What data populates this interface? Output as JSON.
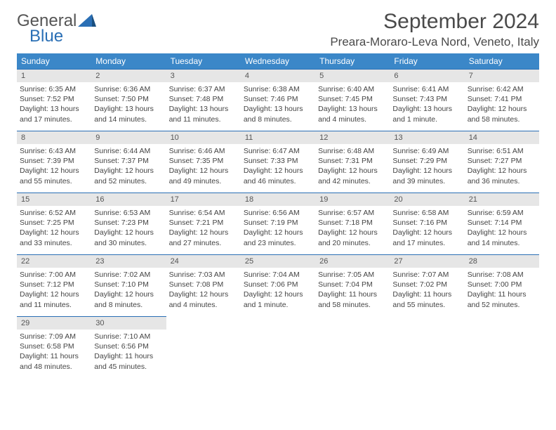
{
  "logo": {
    "line1": "General",
    "line2": "Blue"
  },
  "header": {
    "month_title": "September 2024",
    "location": "Preara-Moraro-Leva Nord, Veneto, Italy"
  },
  "colors": {
    "header_bg": "#3b87c8",
    "header_fg": "#ffffff",
    "day_bar_bg": "#e6e6e6",
    "day_bar_border": "#2a6fb5",
    "text": "#444444"
  },
  "weekdays": [
    "Sunday",
    "Monday",
    "Tuesday",
    "Wednesday",
    "Thursday",
    "Friday",
    "Saturday"
  ],
  "weeks": [
    [
      {
        "n": "1",
        "sunrise": "Sunrise: 6:35 AM",
        "sunset": "Sunset: 7:52 PM",
        "day1": "Daylight: 13 hours",
        "day2": "and 17 minutes."
      },
      {
        "n": "2",
        "sunrise": "Sunrise: 6:36 AM",
        "sunset": "Sunset: 7:50 PM",
        "day1": "Daylight: 13 hours",
        "day2": "and 14 minutes."
      },
      {
        "n": "3",
        "sunrise": "Sunrise: 6:37 AM",
        "sunset": "Sunset: 7:48 PM",
        "day1": "Daylight: 13 hours",
        "day2": "and 11 minutes."
      },
      {
        "n": "4",
        "sunrise": "Sunrise: 6:38 AM",
        "sunset": "Sunset: 7:46 PM",
        "day1": "Daylight: 13 hours",
        "day2": "and 8 minutes."
      },
      {
        "n": "5",
        "sunrise": "Sunrise: 6:40 AM",
        "sunset": "Sunset: 7:45 PM",
        "day1": "Daylight: 13 hours",
        "day2": "and 4 minutes."
      },
      {
        "n": "6",
        "sunrise": "Sunrise: 6:41 AM",
        "sunset": "Sunset: 7:43 PM",
        "day1": "Daylight: 13 hours",
        "day2": "and 1 minute."
      },
      {
        "n": "7",
        "sunrise": "Sunrise: 6:42 AM",
        "sunset": "Sunset: 7:41 PM",
        "day1": "Daylight: 12 hours",
        "day2": "and 58 minutes."
      }
    ],
    [
      {
        "n": "8",
        "sunrise": "Sunrise: 6:43 AM",
        "sunset": "Sunset: 7:39 PM",
        "day1": "Daylight: 12 hours",
        "day2": "and 55 minutes."
      },
      {
        "n": "9",
        "sunrise": "Sunrise: 6:44 AM",
        "sunset": "Sunset: 7:37 PM",
        "day1": "Daylight: 12 hours",
        "day2": "and 52 minutes."
      },
      {
        "n": "10",
        "sunrise": "Sunrise: 6:46 AM",
        "sunset": "Sunset: 7:35 PM",
        "day1": "Daylight: 12 hours",
        "day2": "and 49 minutes."
      },
      {
        "n": "11",
        "sunrise": "Sunrise: 6:47 AM",
        "sunset": "Sunset: 7:33 PM",
        "day1": "Daylight: 12 hours",
        "day2": "and 46 minutes."
      },
      {
        "n": "12",
        "sunrise": "Sunrise: 6:48 AM",
        "sunset": "Sunset: 7:31 PM",
        "day1": "Daylight: 12 hours",
        "day2": "and 42 minutes."
      },
      {
        "n": "13",
        "sunrise": "Sunrise: 6:49 AM",
        "sunset": "Sunset: 7:29 PM",
        "day1": "Daylight: 12 hours",
        "day2": "and 39 minutes."
      },
      {
        "n": "14",
        "sunrise": "Sunrise: 6:51 AM",
        "sunset": "Sunset: 7:27 PM",
        "day1": "Daylight: 12 hours",
        "day2": "and 36 minutes."
      }
    ],
    [
      {
        "n": "15",
        "sunrise": "Sunrise: 6:52 AM",
        "sunset": "Sunset: 7:25 PM",
        "day1": "Daylight: 12 hours",
        "day2": "and 33 minutes."
      },
      {
        "n": "16",
        "sunrise": "Sunrise: 6:53 AM",
        "sunset": "Sunset: 7:23 PM",
        "day1": "Daylight: 12 hours",
        "day2": "and 30 minutes."
      },
      {
        "n": "17",
        "sunrise": "Sunrise: 6:54 AM",
        "sunset": "Sunset: 7:21 PM",
        "day1": "Daylight: 12 hours",
        "day2": "and 27 minutes."
      },
      {
        "n": "18",
        "sunrise": "Sunrise: 6:56 AM",
        "sunset": "Sunset: 7:19 PM",
        "day1": "Daylight: 12 hours",
        "day2": "and 23 minutes."
      },
      {
        "n": "19",
        "sunrise": "Sunrise: 6:57 AM",
        "sunset": "Sunset: 7:18 PM",
        "day1": "Daylight: 12 hours",
        "day2": "and 20 minutes."
      },
      {
        "n": "20",
        "sunrise": "Sunrise: 6:58 AM",
        "sunset": "Sunset: 7:16 PM",
        "day1": "Daylight: 12 hours",
        "day2": "and 17 minutes."
      },
      {
        "n": "21",
        "sunrise": "Sunrise: 6:59 AM",
        "sunset": "Sunset: 7:14 PM",
        "day1": "Daylight: 12 hours",
        "day2": "and 14 minutes."
      }
    ],
    [
      {
        "n": "22",
        "sunrise": "Sunrise: 7:00 AM",
        "sunset": "Sunset: 7:12 PM",
        "day1": "Daylight: 12 hours",
        "day2": "and 11 minutes."
      },
      {
        "n": "23",
        "sunrise": "Sunrise: 7:02 AM",
        "sunset": "Sunset: 7:10 PM",
        "day1": "Daylight: 12 hours",
        "day2": "and 8 minutes."
      },
      {
        "n": "24",
        "sunrise": "Sunrise: 7:03 AM",
        "sunset": "Sunset: 7:08 PM",
        "day1": "Daylight: 12 hours",
        "day2": "and 4 minutes."
      },
      {
        "n": "25",
        "sunrise": "Sunrise: 7:04 AM",
        "sunset": "Sunset: 7:06 PM",
        "day1": "Daylight: 12 hours",
        "day2": "and 1 minute."
      },
      {
        "n": "26",
        "sunrise": "Sunrise: 7:05 AM",
        "sunset": "Sunset: 7:04 PM",
        "day1": "Daylight: 11 hours",
        "day2": "and 58 minutes."
      },
      {
        "n": "27",
        "sunrise": "Sunrise: 7:07 AM",
        "sunset": "Sunset: 7:02 PM",
        "day1": "Daylight: 11 hours",
        "day2": "and 55 minutes."
      },
      {
        "n": "28",
        "sunrise": "Sunrise: 7:08 AM",
        "sunset": "Sunset: 7:00 PM",
        "day1": "Daylight: 11 hours",
        "day2": "and 52 minutes."
      }
    ],
    [
      {
        "n": "29",
        "sunrise": "Sunrise: 7:09 AM",
        "sunset": "Sunset: 6:58 PM",
        "day1": "Daylight: 11 hours",
        "day2": "and 48 minutes."
      },
      {
        "n": "30",
        "sunrise": "Sunrise: 7:10 AM",
        "sunset": "Sunset: 6:56 PM",
        "day1": "Daylight: 11 hours",
        "day2": "and 45 minutes."
      },
      null,
      null,
      null,
      null,
      null
    ]
  ]
}
